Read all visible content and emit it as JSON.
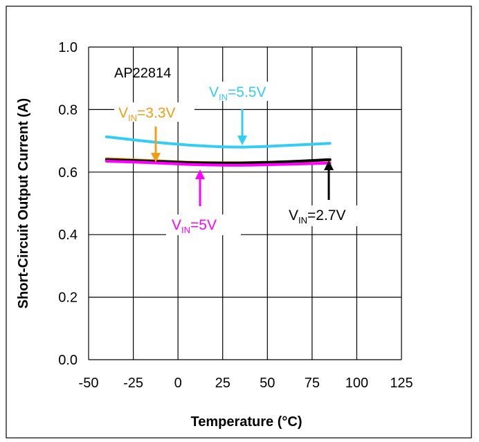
{
  "chart_data": {
    "type": "line",
    "title": "",
    "chart_label": "AP22814",
    "xlabel": "Temperature (°C)",
    "ylabel": "Short-Circuit Output Current (A)",
    "xlim": [
      -50,
      125
    ],
    "ylim": [
      0.0,
      1.0
    ],
    "x_ticks": [
      "-50",
      "-25",
      "0",
      "25",
      "50",
      "75",
      "100",
      "125"
    ],
    "y_ticks": [
      "0.0",
      "0.2",
      "0.4",
      "0.6",
      "0.8",
      "1.0"
    ],
    "x_tick_values": [
      -50,
      -25,
      0,
      25,
      50,
      75,
      100,
      125
    ],
    "y_tick_values": [
      0.0,
      0.2,
      0.4,
      0.6,
      0.8,
      1.0
    ],
    "grid": true,
    "series": [
      {
        "name": "VIN=5.5V",
        "color": "#33ccf4",
        "x": [
          -40,
          -15,
          10,
          35,
          60,
          85
        ],
        "values": [
          0.713,
          0.697,
          0.685,
          0.68,
          0.685,
          0.692
        ]
      },
      {
        "name": "VIN=3.3V",
        "color": "#f39c12",
        "x": [
          -40,
          -15,
          10,
          35,
          60,
          85
        ],
        "values": [
          0.643,
          0.637,
          0.631,
          0.63,
          0.633,
          0.638
        ]
      },
      {
        "name": "VIN=2.7V",
        "color": "#000000",
        "x": [
          -40,
          -15,
          10,
          35,
          60,
          85
        ],
        "values": [
          0.64,
          0.635,
          0.63,
          0.629,
          0.633,
          0.64
        ]
      },
      {
        "name": "VIN=5V",
        "color": "#ff00ff",
        "x": [
          -40,
          -15,
          10,
          35,
          60,
          85
        ],
        "values": [
          0.635,
          0.63,
          0.624,
          0.622,
          0.625,
          0.629
        ]
      }
    ],
    "annotations": [
      {
        "series": "VIN=5.5V",
        "prefix": "V",
        "sub": "IN",
        "suffix": "=5.5V",
        "color": "#33ccf4"
      },
      {
        "series": "VIN=3.3V",
        "prefix": "V",
        "sub": "IN",
        "suffix": "=3.3V",
        "color": "#f39c12"
      },
      {
        "series": "VIN=5V",
        "prefix": "V",
        "sub": "IN",
        "suffix": "=5V",
        "color": "#ff00ff"
      },
      {
        "series": "VIN=2.7V",
        "prefix": "V",
        "sub": "IN",
        "suffix": "=2.7V",
        "color": "#000000"
      }
    ]
  }
}
